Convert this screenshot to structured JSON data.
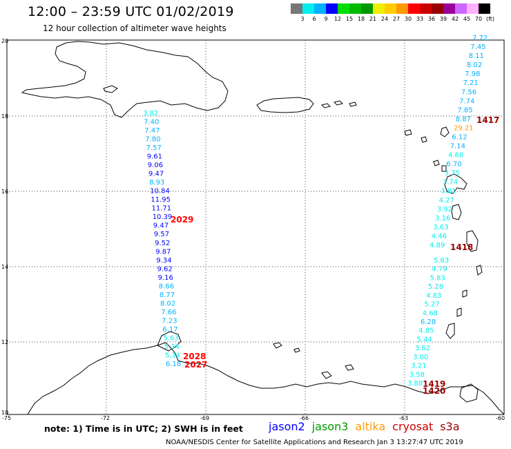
{
  "header": {
    "title": "12:00 – 23:59 UTC 01/02/2019",
    "subtitle": "12 hour collection of altimeter wave heights"
  },
  "colorbar": {
    "colors": [
      "#777777",
      "#00eeee",
      "#00b2ff",
      "#0000ff",
      "#00dd00",
      "#00bb00",
      "#009900",
      "#eeee00",
      "#ffcc00",
      "#ff9900",
      "#ff0000",
      "#cc0000",
      "#990000",
      "#990099",
      "#cc66ff",
      "#ffb0ff",
      "#000000"
    ],
    "labels": [
      "3",
      "6",
      "9",
      "12",
      "15",
      "18",
      "21",
      "24",
      "27",
      "30",
      "33",
      "36",
      "39",
      "42",
      "45",
      "70",
      "(ft)"
    ]
  },
  "axes": {
    "lon_ticks": [
      "-75",
      "-72",
      "-69",
      "-66",
      "-63",
      "-60"
    ],
    "lat_ticks": [
      "20",
      "18",
      "16",
      "14",
      "12",
      "10"
    ]
  },
  "tracks": [
    {
      "orbit": "2029",
      "orbit_color": "#ff0000",
      "x_top": 207,
      "x_bottom": 240,
      "values": [
        "3.82",
        "7.40",
        "7.47",
        "7.80",
        "7.57",
        "9.61",
        "9.06",
        "9.47",
        "8.93",
        "10.84",
        "11.95",
        "11.71",
        "10.39",
        "9.47",
        "9.57",
        "9.52",
        "9.87",
        "9.34",
        "9.62",
        "9.16",
        "8.66",
        "8.77",
        "8.02",
        "7.66",
        "7.23",
        "6.17",
        "5.63",
        "5.34",
        "5.34",
        "6.18"
      ]
    },
    {
      "orbit": "1417",
      "orbit_color": "#990000",
      "x_top": 684,
      "x_bottom": 622,
      "values": [
        "7.72",
        "7.45",
        "8.11",
        "8.02",
        "7.98",
        "7.21",
        "7.56",
        "7.74",
        "7.85",
        "8.87",
        "29.21",
        "6.12",
        "7.14",
        "4.68",
        "6.70",
        "3.75",
        "3.74",
        "3.81",
        "4.27",
        "3.92",
        "3.16",
        "3.63",
        "4.46",
        "4.89"
      ]
    },
    {
      "orbit": "1419",
      "orbit_color": "#990000",
      "x_top": 628,
      "x_bottom": 590,
      "values": [
        "5.63",
        "4.79",
        "5.83",
        "5.28",
        "4.83",
        "5.27",
        "4.68",
        "6.28",
        "4.85",
        "5.44",
        "3.62",
        "3.00",
        "3.21",
        "3.58",
        "3.88"
      ]
    }
  ],
  "orbit_labels": [
    {
      "text": "2029",
      "color": "#ff0000"
    },
    {
      "text": "2028",
      "color": "#ff0000"
    },
    {
      "text": "2027",
      "color": "#ff0000"
    },
    {
      "text": "1417",
      "color": "#990000"
    },
    {
      "text": "1418",
      "color": "#990000"
    },
    {
      "text": "1419",
      "color": "#990000"
    },
    {
      "text": "1420",
      "color": "#990000"
    }
  ],
  "footer": {
    "note": "note:  1) Time is in UTC; 2) SWH is in feet",
    "missions": [
      {
        "name": "jason2",
        "color": "#0000ff"
      },
      {
        "name": "jason3",
        "color": "#009900"
      },
      {
        "name": "altika",
        "color": "#ff9900"
      },
      {
        "name": "cryosat",
        "color": "#cc0000"
      },
      {
        "name": "s3a",
        "color": "#990000"
      }
    ],
    "credit": "NOAA/NESDIS Center for Satellite Applications and Research    Jan  3 13:27:47 UTC 2019"
  }
}
